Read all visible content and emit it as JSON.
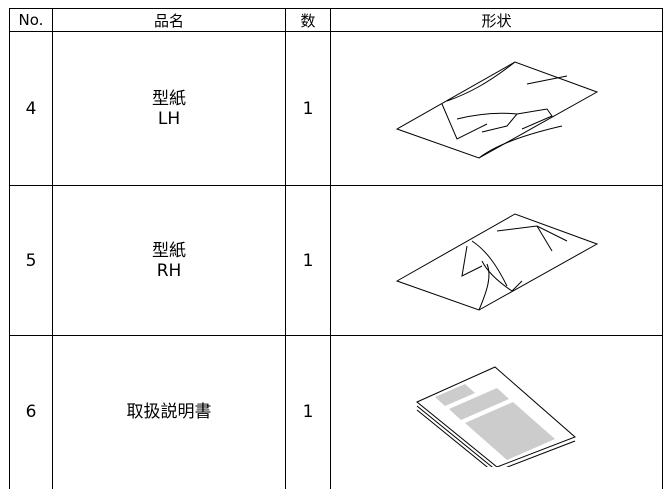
{
  "table": {
    "header": [
      "No.",
      "品名",
      "数",
      "形状"
    ],
    "rows": [
      {
        "no": "4",
        "name": [
          "型紙",
          "LH"
        ],
        "qty": "1"
      },
      {
        "no": "5",
        "name": [
          "型紙",
          "RH"
        ],
        "qty": "1"
      },
      {
        "no": "6",
        "name": [
          "取扱説明書"
        ],
        "qty": "1"
      }
    ]
  }
}
